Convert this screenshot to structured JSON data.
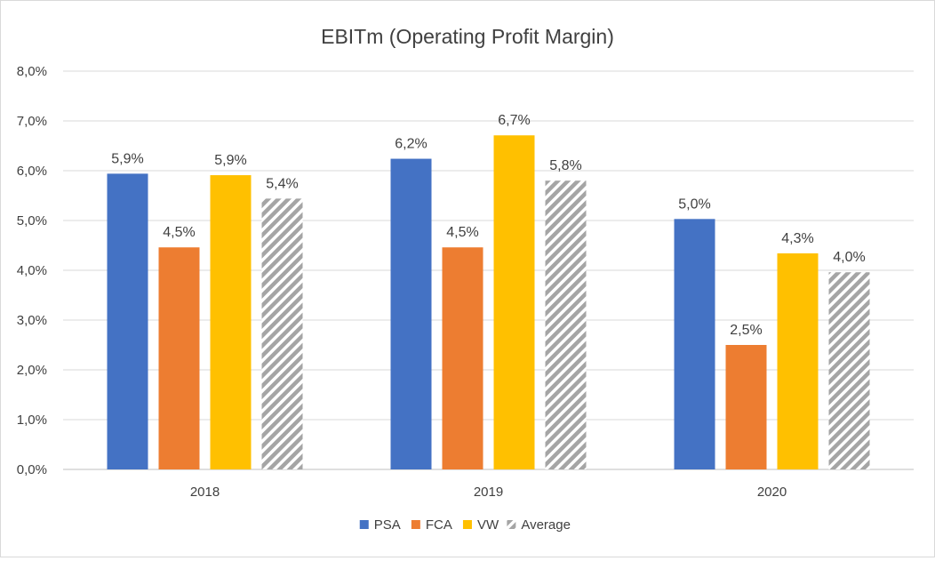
{
  "chart_data": {
    "type": "bar",
    "title": "EBITm (Operating Profit Margin)",
    "xlabel": "",
    "ylabel": "",
    "categories": [
      "2018",
      "2019",
      "2020"
    ],
    "ylim": [
      0,
      8
    ],
    "yticks": [
      "0,0%",
      "1,0%",
      "2,0%",
      "3,0%",
      "4,0%",
      "5,0%",
      "6,0%",
      "7,0%",
      "8,0%"
    ],
    "grid": true,
    "legend_position": "bottom",
    "series": [
      {
        "name": "PSA",
        "color": "#4472c4",
        "pattern": "solid",
        "values": [
          5.94,
          6.24,
          5.03
        ],
        "labels": [
          "5,9%",
          "6,2%",
          "5,0%"
        ]
      },
      {
        "name": "FCA",
        "color": "#ed7d31",
        "pattern": "solid",
        "values": [
          4.46,
          4.46,
          2.5
        ],
        "labels": [
          "4,5%",
          "4,5%",
          "2,5%"
        ]
      },
      {
        "name": "VW",
        "color": "#ffc000",
        "pattern": "solid",
        "values": [
          5.91,
          6.71,
          4.34
        ],
        "labels": [
          "5,9%",
          "6,7%",
          "4,3%"
        ]
      },
      {
        "name": "Average",
        "color": "#a5a5a5",
        "pattern": "diagonal-stripes",
        "values": [
          5.44,
          5.8,
          3.96
        ],
        "labels": [
          "5,4%",
          "5,8%",
          "4,0%"
        ]
      }
    ]
  }
}
